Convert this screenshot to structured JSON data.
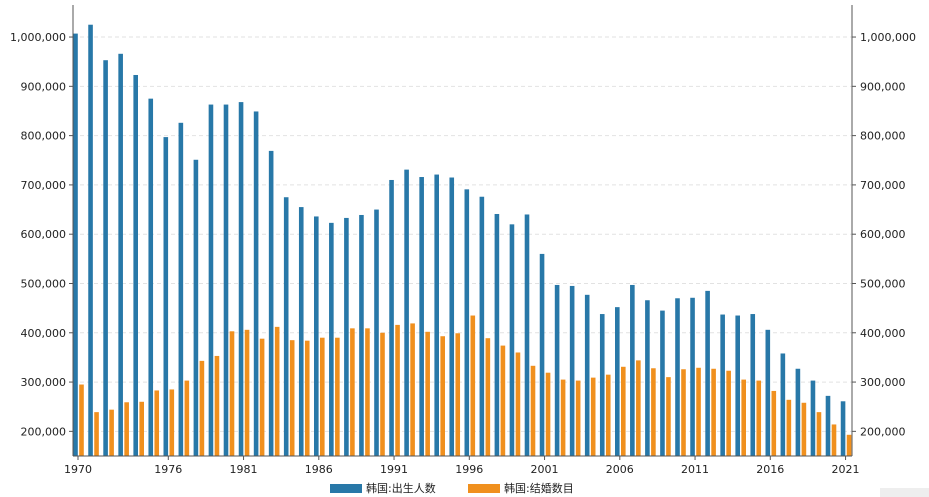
{
  "chart_data": {
    "type": "bar",
    "title": "",
    "xlabel": "",
    "ylabel": "",
    "ylim": [
      150000,
      1065000
    ],
    "y_ticks": [
      200000,
      300000,
      400000,
      500000,
      600000,
      700000,
      800000,
      900000,
      1000000
    ],
    "y_tick_labels": [
      "200,000",
      "300,000",
      "400,000",
      "500,000",
      "600,000",
      "700,000",
      "800,000",
      "900,000",
      "1,000,000"
    ],
    "x_tick_labels": [
      "1970",
      "1976",
      "1981",
      "1986",
      "1991",
      "1996",
      "2001",
      "2006",
      "2011",
      "2016",
      "2021"
    ],
    "x_tick_years": [
      1970,
      1976,
      1981,
      1986,
      1991,
      1996,
      2001,
      2006,
      2011,
      2016,
      2021
    ],
    "grid": "horizontal-dashed",
    "legend_position": "bottom-center",
    "categories": [
      1970,
      1971,
      1972,
      1973,
      1974,
      1975,
      1976,
      1977,
      1978,
      1979,
      1980,
      1981,
      1982,
      1983,
      1984,
      1985,
      1986,
      1987,
      1988,
      1989,
      1990,
      1991,
      1992,
      1993,
      1994,
      1995,
      1996,
      1997,
      1998,
      1999,
      2000,
      2001,
      2002,
      2003,
      2004,
      2005,
      2006,
      2007,
      2008,
      2009,
      2010,
      2011,
      2012,
      2013,
      2014,
      2015,
      2016,
      2017,
      2018,
      2019,
      2020,
      2021
    ],
    "series": [
      {
        "name": "韩国:出生人数",
        "color": "#2878a8",
        "values": [
          1007000,
          1025000,
          953000,
          966000,
          923000,
          875000,
          797000,
          826000,
          751000,
          863000,
          863000,
          868000,
          849000,
          769000,
          675000,
          655000,
          636000,
          623000,
          633000,
          639000,
          650000,
          710000,
          731000,
          716000,
          721000,
          715000,
          691000,
          676000,
          641000,
          620000,
          640000,
          560000,
          497000,
          495000,
          477000,
          438000,
          452000,
          497000,
          466000,
          445000,
          470000,
          471000,
          485000,
          437000,
          435000,
          438000,
          406000,
          358000,
          327000,
          303000,
          272000,
          261000
        ]
      },
      {
        "name": "韩国:结婚数目",
        "color": "#f0901e",
        "values": [
          295000,
          239000,
          244000,
          259000,
          260000,
          283000,
          285000,
          303000,
          343000,
          353000,
          403000,
          406000,
          388000,
          412000,
          385000,
          384000,
          390000,
          390000,
          409000,
          409000,
          400000,
          416000,
          419000,
          402000,
          393000,
          399000,
          435000,
          389000,
          374000,
          360000,
          333000,
          319000,
          305000,
          303000,
          309000,
          315000,
          331000,
          344000,
          328000,
          310000,
          326000,
          329000,
          327000,
          323000,
          305000,
          303000,
          282000,
          264000,
          258000,
          239000,
          214000,
          193000
        ]
      }
    ]
  }
}
